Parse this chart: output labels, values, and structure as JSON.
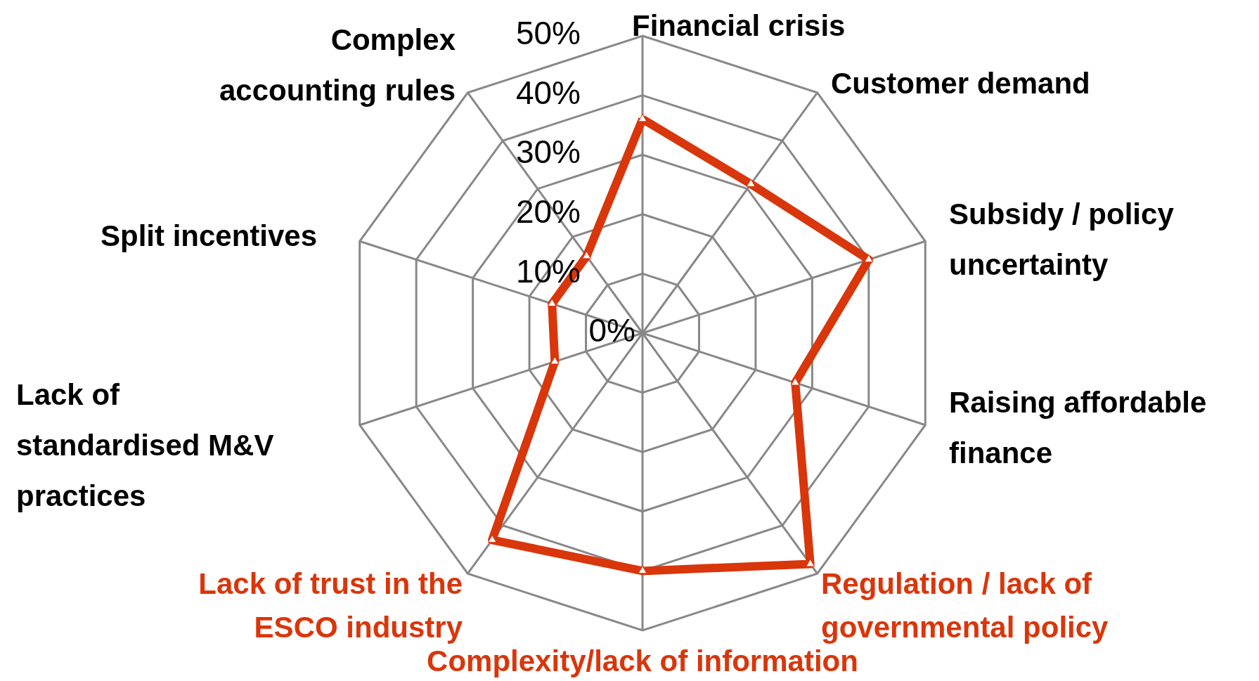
{
  "chart_data": {
    "type": "radar",
    "categories": [
      "Financial crisis",
      "Customer demand",
      "Subsidy / policy\nuncertainty",
      "Raising affordable\nfinance",
      "Regulation / lack of\ngovernmental policy",
      "Complexity/lack of information",
      "Lack of trust in the\nESCO industry",
      "Lack of\nstandardised M&V\npractices",
      "Split incentives",
      "Complex\naccounting rules"
    ],
    "colors": [
      "#000000",
      "#000000",
      "#000000",
      "#000000",
      "#d9360b",
      "#d9360b",
      "#d9360b",
      "#000000",
      "#000000",
      "#000000"
    ],
    "series": [
      {
        "color": "#d9360b",
        "values": [
          36,
          31,
          40,
          27,
          48,
          40,
          43,
          15.5,
          16,
          16
        ]
      }
    ],
    "ylim": [
      0,
      50
    ],
    "yticks": [
      {
        "value": 0,
        "label": "0%"
      },
      {
        "value": 10,
        "label": "10%"
      },
      {
        "value": 20,
        "label": "20%"
      },
      {
        "value": 30,
        "label": "30%"
      },
      {
        "value": 40,
        "label": "40%"
      },
      {
        "value": 50,
        "label": "50%"
      }
    ],
    "grid": true,
    "marker": "triangle",
    "legend": false
  }
}
